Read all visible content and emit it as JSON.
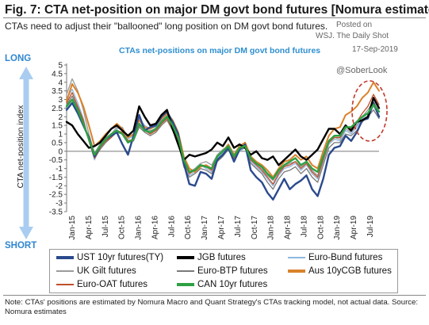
{
  "header": {
    "title": "Fig. 7: CTA net-position on major DM govt bond futures [Nomura estimates]",
    "subtitle": "CTAs need to adjust their \"ballooned\" long position on DM govt bond futures."
  },
  "watermark": {
    "posted_on": "Posted on",
    "source": "WSJ. The Daily Shot",
    "date": "17-Sep-2019",
    "handle": "@SoberLook"
  },
  "labels": {
    "long": "LONG",
    "short": "SHORT"
  },
  "footer": {
    "note": "Note: CTAs' positions are estimated by Nomura Macro and Quant Strategy's CTAs tracking model, not actual data. Source: Nomura estimates"
  },
  "chart_data": {
    "type": "line",
    "title": "CTAs  net-positions on major DM govt bond futures",
    "ylabel": "CTA net-position index",
    "ylim": [
      -3.5,
      5
    ],
    "yticks": [
      -3.5,
      -3,
      -2.5,
      -2,
      -1.5,
      -1,
      -0.5,
      0,
      0.5,
      1,
      1.5,
      2,
      2.5,
      3,
      3.5,
      4,
      4.5,
      5
    ],
    "ytick_labels": [
      "-3.5",
      "-3",
      "-2.5",
      "-2",
      "-1.5",
      "-1",
      "-0.5",
      "0",
      "0.5",
      "1",
      "1.5",
      "2",
      "2.5",
      "3",
      "3.5",
      "4",
      "4.5",
      "5"
    ],
    "xlim": [
      "2015-01",
      "2019-09"
    ],
    "xtick_labels": [
      "Jan-15",
      "Apr-15",
      "Jul-15",
      "Oct-15",
      "Jan-16",
      "Apr-16",
      "Jul-16",
      "Oct-16",
      "Jan-17",
      "Apr-17",
      "Jul-17",
      "Oct-17",
      "Jan-18",
      "Apr-18",
      "Jul-18",
      "Oct-18",
      "Jan-19",
      "Apr-19",
      "Jul-19"
    ],
    "grid": false,
    "legend": "bottom",
    "x": [
      "Jan-15",
      "Feb-15",
      "Mar-15",
      "Apr-15",
      "May-15",
      "Jun-15",
      "Jul-15",
      "Aug-15",
      "Sep-15",
      "Oct-15",
      "Nov-15",
      "Dec-15",
      "Jan-16",
      "Feb-16",
      "Mar-16",
      "Apr-16",
      "May-16",
      "Jun-16",
      "Jul-16",
      "Aug-16",
      "Sep-16",
      "Oct-16",
      "Nov-16",
      "Dec-16",
      "Jan-17",
      "Feb-17",
      "Mar-17",
      "Apr-17",
      "May-17",
      "Jun-17",
      "Jul-17",
      "Aug-17",
      "Sep-17",
      "Oct-17",
      "Nov-17",
      "Dec-17",
      "Jan-18",
      "Feb-18",
      "Mar-18",
      "Apr-18",
      "May-18",
      "Jun-18",
      "Jul-18",
      "Aug-18",
      "Sep-18",
      "Oct-18",
      "Nov-18",
      "Dec-18",
      "Jan-19",
      "Feb-19",
      "Mar-19",
      "Apr-19",
      "May-19",
      "Jun-19",
      "Jul-19",
      "Aug-19",
      "Sep-19"
    ],
    "series": [
      {
        "name": "UST 10yr futures(TY)",
        "color": "#2b4a8c",
        "width": 2.4,
        "values": [
          2.4,
          2.8,
          2.2,
          1.5,
          0.8,
          -0.3,
          0.3,
          0.7,
          0.9,
          1.1,
          0.4,
          -0.2,
          0.9,
          2.1,
          1.2,
          1.4,
          1.5,
          2.0,
          2.3,
          1.7,
          1.0,
          -0.7,
          -1.9,
          -2.0,
          -1.2,
          -1.3,
          -1.6,
          -0.5,
          -0.2,
          0.2,
          -0.6,
          0.1,
          0.4,
          -1.1,
          -1.5,
          -1.8,
          -2.4,
          -2.8,
          -2.2,
          -1.6,
          -2.2,
          -1.9,
          -1.7,
          -1.4,
          -2.2,
          -2.6,
          -1.6,
          -0.2,
          0.2,
          0.3,
          0.9,
          0.6,
          1.1,
          1.8,
          1.9,
          2.8,
          2.0
        ]
      },
      {
        "name": "JGB futures",
        "color": "#000000",
        "width": 2.4,
        "values": [
          1.7,
          1.5,
          1.0,
          0.6,
          0.2,
          0.3,
          0.5,
          0.9,
          1.3,
          1.5,
          1.2,
          0.9,
          1.2,
          2.6,
          2.0,
          1.5,
          1.6,
          2.1,
          2.4,
          1.3,
          0.4,
          -0.5,
          -0.2,
          -0.3,
          -0.2,
          -0.1,
          0.1,
          0.5,
          0.3,
          0.8,
          0.2,
          0.4,
          0.2,
          -0.2,
          0.0,
          -0.4,
          -0.5,
          -0.3,
          -0.8,
          -0.5,
          -0.2,
          0.1,
          -0.3,
          -0.5,
          -0.2,
          0.1,
          0.7,
          1.3,
          1.3,
          1.0,
          1.5,
          1.2,
          1.7,
          1.8,
          2.0,
          3.1,
          2.5
        ]
      },
      {
        "name": "Euro-Bund futures",
        "color": "#8fb7e2",
        "width": 1.3,
        "values": [
          3.0,
          3.6,
          2.8,
          1.9,
          0.6,
          -0.5,
          0.2,
          0.6,
          0.9,
          1.3,
          1.4,
          0.7,
          0.9,
          1.9,
          1.5,
          1.3,
          1.4,
          1.7,
          2.0,
          1.4,
          0.6,
          -0.8,
          -1.4,
          -1.2,
          -0.8,
          -1.0,
          -1.2,
          -0.4,
          -0.1,
          0.3,
          -0.5,
          0.0,
          0.2,
          -0.6,
          -0.9,
          -1.2,
          -1.6,
          -2.0,
          -1.4,
          -1.0,
          -0.9,
          -0.7,
          -1.1,
          -0.8,
          -1.3,
          -1.6,
          -0.6,
          0.4,
          0.7,
          0.6,
          1.2,
          1.0,
          1.4,
          1.9,
          2.2,
          2.6,
          2.1
        ]
      },
      {
        "name": "UK Gilt futures",
        "color": "#9a9a9a",
        "width": 1.3,
        "values": [
          3.3,
          4.2,
          3.5,
          2.4,
          1.0,
          -0.1,
          0.4,
          0.8,
          1.0,
          1.4,
          1.2,
          0.6,
          0.7,
          1.6,
          1.3,
          1.2,
          1.3,
          1.8,
          2.1,
          1.6,
          0.8,
          -0.6,
          -1.2,
          -1.0,
          -0.7,
          -0.6,
          -0.8,
          -0.2,
          0.1,
          0.3,
          -0.3,
          0.2,
          0.3,
          -0.5,
          -0.8,
          -1.0,
          -1.4,
          -1.7,
          -1.2,
          -0.9,
          -0.7,
          -0.6,
          -0.9,
          -0.7,
          -1.1,
          -1.4,
          -0.5,
          0.5,
          0.8,
          0.7,
          1.3,
          1.1,
          1.5,
          2.0,
          2.4,
          2.9,
          2.3
        ]
      },
      {
        "name": "Euro-BTP futures",
        "color": "#7a7a7a",
        "width": 1.3,
        "values": [
          2.7,
          3.2,
          2.5,
          1.7,
          0.7,
          -0.4,
          0.1,
          0.5,
          0.8,
          1.1,
          1.0,
          0.5,
          0.6,
          1.4,
          1.1,
          0.9,
          1.1,
          1.5,
          1.8,
          1.2,
          0.5,
          -0.9,
          -1.5,
          -1.3,
          -1.0,
          -1.1,
          -1.3,
          -0.6,
          -0.3,
          0.1,
          -0.4,
          0.1,
          0.2,
          -0.7,
          -1.0,
          -1.3,
          -1.8,
          -2.2,
          -1.6,
          -1.2,
          -1.1,
          -0.9,
          -1.3,
          -1.0,
          -1.5,
          -1.8,
          -0.8,
          0.2,
          0.5,
          0.5,
          1.0,
          0.9,
          1.2,
          1.7,
          2.0,
          2.4,
          1.9
        ]
      },
      {
        "name": "Aus 10yCGB futures",
        "color": "#d9822b",
        "width": 2.0,
        "values": [
          2.9,
          3.9,
          3.4,
          2.6,
          1.5,
          0.3,
          0.6,
          1.0,
          1.3,
          1.6,
          1.3,
          0.8,
          1.0,
          1.8,
          1.4,
          1.3,
          1.5,
          1.9,
          2.2,
          1.8,
          1.1,
          -0.3,
          -1.0,
          -1.2,
          -0.9,
          -0.8,
          -1.0,
          -0.3,
          0.0,
          0.4,
          -0.2,
          0.3,
          0.5,
          -0.3,
          -0.6,
          -0.8,
          -1.1,
          -1.5,
          -1.0,
          -0.6,
          -0.5,
          -0.2,
          -0.5,
          -0.3,
          -0.8,
          -1.0,
          0.0,
          0.9,
          1.3,
          1.4,
          2.1,
          2.3,
          2.6,
          3.1,
          3.4,
          4.0,
          3.5
        ]
      },
      {
        "name": "Euro-OAT futures",
        "color": "#c0502a",
        "width": 1.3,
        "values": [
          2.8,
          3.4,
          2.6,
          1.8,
          0.6,
          -0.4,
          0.2,
          0.6,
          0.8,
          1.2,
          1.1,
          0.6,
          0.7,
          1.5,
          1.2,
          1.0,
          1.2,
          1.6,
          1.9,
          1.3,
          0.6,
          -0.7,
          -1.3,
          -1.1,
          -0.8,
          -0.9,
          -1.1,
          -0.5,
          -0.2,
          0.2,
          -0.4,
          0.1,
          0.3,
          -0.5,
          -0.8,
          -1.1,
          -1.5,
          -1.9,
          -1.3,
          -0.9,
          -0.8,
          -0.6,
          -1.0,
          -0.7,
          -1.2,
          -1.5,
          -0.5,
          0.5,
          0.8,
          0.8,
          1.4,
          1.3,
          1.7,
          2.2,
          2.6,
          3.3,
          2.7
        ]
      },
      {
        "name": "CAN 10yr futures",
        "color": "#2ea043",
        "width": 2.4,
        "values": [
          2.6,
          3.0,
          2.4,
          1.6,
          0.7,
          -0.2,
          0.3,
          0.7,
          1.0,
          1.2,
          1.0,
          0.5,
          0.7,
          1.6,
          1.2,
          1.1,
          1.3,
          1.7,
          2.0,
          1.5,
          0.8,
          -0.5,
          -1.2,
          -1.1,
          -0.8,
          -0.9,
          -1.0,
          -0.3,
          0.0,
          0.3,
          -0.3,
          0.2,
          0.3,
          -0.4,
          -0.7,
          -0.9,
          -1.3,
          -1.6,
          -1.1,
          -0.8,
          -0.6,
          -0.4,
          -0.8,
          -0.6,
          -1.0,
          -1.2,
          -0.3,
          0.6,
          0.9,
          0.9,
          1.4,
          1.4,
          1.7,
          2.0,
          2.2,
          2.7,
          2.3
        ]
      }
    ]
  }
}
